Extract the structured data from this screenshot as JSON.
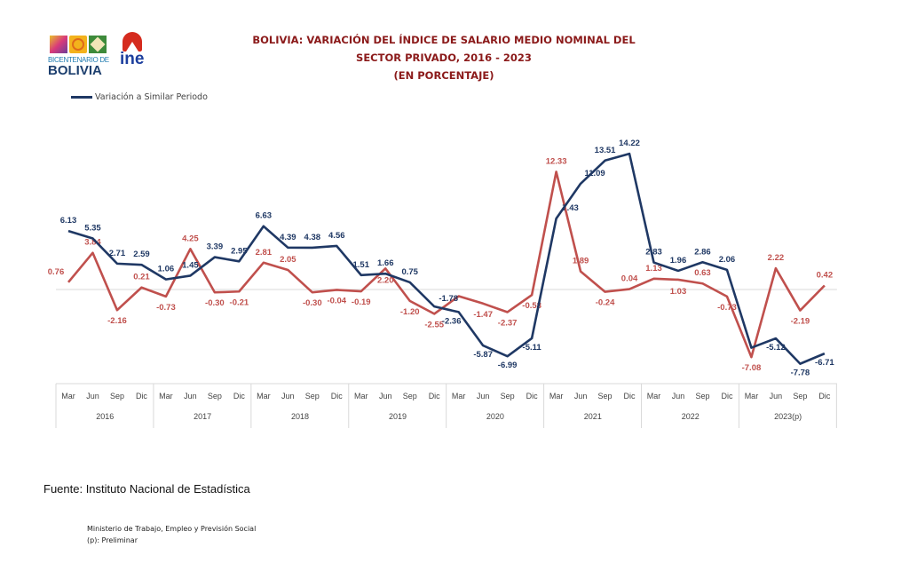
{
  "header": {
    "title_lines": [
      "BOLIVIA: VARIACIÓN DEL ÍNDICE DE SALARIO MEDIO NOMINAL DEL",
      "SECTOR PRIVADO, 2016 - 2023",
      "(EN PORCENTAJE)"
    ],
    "logo_bicentenario": [
      "BICENTENARIO DE",
      "BOLIVIA"
    ],
    "logo_ine": "ine"
  },
  "colors": {
    "title": "#8B1A1A",
    "series_blue": "#1F3864",
    "series_red": "#C0504D",
    "axis": "#D9D9D9"
  },
  "chart_data": {
    "type": "line",
    "title": "BOLIVIA: VARIACIÓN DEL ÍNDICE DE SALARIO MEDIO NOMINAL DEL SECTOR PRIVADO, 2016 - 2023 (EN PORCENTAJE)",
    "legend": {
      "position": "top-left",
      "entries": [
        "Variación a Similar Periodo"
      ]
    },
    "grid": false,
    "ylim": [
      -9,
      16
    ],
    "x_quarters": [
      "Mar",
      "Jun",
      "Sep",
      "Dic"
    ],
    "x_years": [
      "2016",
      "2017",
      "2018",
      "2019",
      "2020",
      "2021",
      "2022",
      "2023(p)"
    ],
    "series": [
      {
        "name": "Variación a Similar Periodo",
        "color": "#1F3864",
        "values": [
          6.13,
          5.35,
          2.71,
          2.59,
          1.06,
          1.45,
          3.39,
          2.95,
          6.63,
          4.39,
          4.38,
          4.56,
          1.51,
          1.66,
          0.75,
          -1.78,
          -2.36,
          -5.87,
          -6.99,
          -5.11,
          7.43,
          11.09,
          13.51,
          14.22,
          2.83,
          1.96,
          2.86,
          2.06,
          -6.1,
          -5.12,
          -7.78,
          -6.71
        ],
        "labels": [
          "6.13",
          "5.35",
          "2.71",
          "2.59",
          "1.06",
          "1.45",
          "3.39",
          "2.95",
          "6.63",
          "4.39",
          "4.38",
          "4.56",
          "1.51",
          "1.66",
          "0.75",
          "-1.78",
          "-2.36",
          "-5.87",
          "-6.99",
          "-5.11",
          "7.43",
          "11.09",
          "13.51",
          "14.22",
          "2.83",
          "1.96",
          "2.86",
          "2.06",
          null,
          "-5.12",
          "-7.78",
          "-6.71"
        ]
      },
      {
        "color": "#C0504D",
        "values": [
          0.76,
          3.84,
          -2.16,
          0.21,
          -0.73,
          4.25,
          -0.3,
          -0.21,
          2.81,
          2.05,
          -0.3,
          -0.04,
          -0.19,
          2.2,
          -1.2,
          -2.55,
          -0.7,
          -1.47,
          -2.37,
          -0.58,
          12.33,
          1.89,
          -0.24,
          0.04,
          1.13,
          1.03,
          0.63,
          -0.73,
          -7.08,
          2.22,
          -2.19,
          0.42
        ],
        "labels": [
          "0.76",
          "3.84",
          "-2.16",
          "0.21",
          "-0.73",
          "4.25",
          "-0.30",
          "-0.21",
          "2.81",
          "2.05",
          "-0.30",
          "-0.04",
          "-0.19",
          "2.20",
          "-1.20",
          "-2.55",
          null,
          "-1.47",
          "-2.37",
          "-0.58",
          "12.33",
          "1.89",
          "-0.24",
          "0.04",
          "1.13",
          "1.03",
          "0.63",
          "-0.73",
          "-7.08",
          "2.22",
          "-2.19",
          "0.42"
        ]
      }
    ]
  },
  "footer": {
    "source": "Fuente: Instituto Nacional de Estadística",
    "ministry": "Ministerio de Trabajo, Empleo y Previsión Social",
    "note": "(p): Preliminar"
  }
}
